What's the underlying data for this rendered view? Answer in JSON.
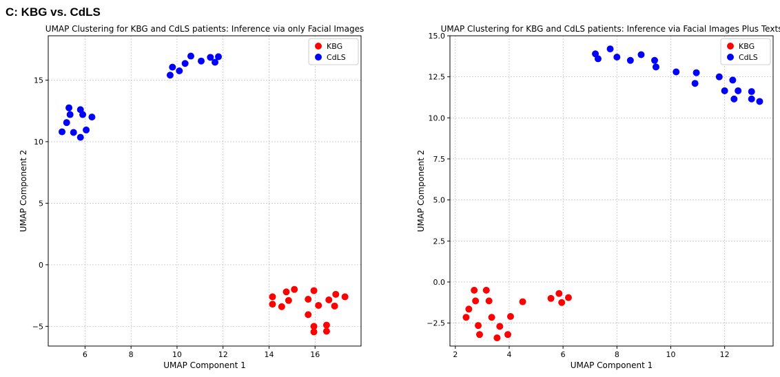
{
  "heading": "C: KBG vs. CdLS",
  "chart_data": [
    {
      "type": "scatter",
      "title": "UMAP Clustering for KBG and CdLS patients: Inference via only Facial Images",
      "xlabel": "UMAP Component 1",
      "ylabel": "UMAP Component 2",
      "xlim": [
        4.4,
        18.0
      ],
      "ylim": [
        -6.6,
        18.6
      ],
      "xticks": [
        6,
        8,
        10,
        12,
        14,
        16
      ],
      "yticks": [
        -5,
        0,
        5,
        10,
        15
      ],
      "tick_labels_x": [
        "6",
        "8",
        "10",
        "12",
        "14",
        "16"
      ],
      "tick_labels_y": [
        "−5",
        "0",
        "5",
        "10",
        "15"
      ],
      "grid": true,
      "legend_position": "top-right",
      "series": [
        {
          "name": "KBG",
          "color": "#ff0000",
          "points": [
            [
              14.15,
              -2.6
            ],
            [
              14.15,
              -3.2
            ],
            [
              14.55,
              -3.4
            ],
            [
              14.75,
              -2.2
            ],
            [
              14.85,
              -2.9
            ],
            [
              15.1,
              -2.0
            ],
            [
              15.7,
              -2.8
            ],
            [
              15.95,
              -2.1
            ],
            [
              16.15,
              -3.3
            ],
            [
              15.7,
              -4.05
            ],
            [
              15.95,
              -5.0
            ],
            [
              15.95,
              -5.45
            ],
            [
              16.5,
              -4.9
            ],
            [
              16.5,
              -5.4
            ],
            [
              16.6,
              -2.85
            ],
            [
              16.85,
              -3.35
            ],
            [
              16.9,
              -2.4
            ],
            [
              17.3,
              -2.6
            ]
          ]
        },
        {
          "name": "CdLS",
          "color": "#0000ff",
          "points": [
            [
              5.0,
              10.8
            ],
            [
              5.2,
              11.55
            ],
            [
              5.3,
              12.75
            ],
            [
              5.35,
              12.2
            ],
            [
              5.5,
              10.75
            ],
            [
              5.8,
              12.6
            ],
            [
              5.8,
              10.35
            ],
            [
              5.9,
              12.2
            ],
            [
              6.05,
              10.95
            ],
            [
              6.3,
              12.0
            ],
            [
              9.7,
              15.4
            ],
            [
              9.8,
              16.05
            ],
            [
              10.1,
              15.75
            ],
            [
              10.35,
              16.35
            ],
            [
              10.6,
              16.95
            ],
            [
              11.05,
              16.55
            ],
            [
              11.45,
              16.85
            ],
            [
              11.65,
              16.45
            ],
            [
              11.8,
              16.9
            ]
          ]
        }
      ]
    },
    {
      "type": "scatter",
      "title": "UMAP Clustering for KBG and CdLS patients: Inference via Facial Images Plus Texts",
      "xlabel": "UMAP Component 1",
      "ylabel": "UMAP Component 2",
      "xlim": [
        1.8,
        13.8
      ],
      "ylim": [
        -3.9,
        15.0
      ],
      "xticks": [
        2,
        4,
        6,
        8,
        10,
        12
      ],
      "yticks": [
        -2.5,
        0.0,
        2.5,
        5.0,
        7.5,
        10.0,
        12.5,
        15.0
      ],
      "tick_labels_x": [
        "2",
        "4",
        "6",
        "8",
        "10",
        "12"
      ],
      "tick_labels_y": [
        "−2.5",
        "0.0",
        "2.5",
        "5.0",
        "7.5",
        "10.0",
        "12.5",
        "15.0"
      ],
      "grid": true,
      "legend_position": "top-right",
      "series": [
        {
          "name": "KBG",
          "color": "#ff0000",
          "points": [
            [
              2.4,
              -2.15
            ],
            [
              2.5,
              -1.65
            ],
            [
              2.7,
              -0.5
            ],
            [
              2.75,
              -1.15
            ],
            [
              2.85,
              -2.65
            ],
            [
              2.9,
              -3.2
            ],
            [
              3.15,
              -0.5
            ],
            [
              3.25,
              -1.15
            ],
            [
              3.35,
              -2.15
            ],
            [
              3.55,
              -3.4
            ],
            [
              3.65,
              -2.7
            ],
            [
              3.95,
              -3.2
            ],
            [
              4.05,
              -2.1
            ],
            [
              4.5,
              -1.2
            ],
            [
              5.55,
              -1.0
            ],
            [
              5.85,
              -0.7
            ],
            [
              5.95,
              -1.25
            ],
            [
              6.2,
              -0.95
            ]
          ]
        },
        {
          "name": "CdLS",
          "color": "#0000ff",
          "points": [
            [
              7.2,
              13.9
            ],
            [
              7.3,
              13.6
            ],
            [
              7.75,
              14.2
            ],
            [
              8.0,
              13.7
            ],
            [
              8.5,
              13.5
            ],
            [
              8.9,
              13.85
            ],
            [
              9.4,
              13.5
            ],
            [
              9.45,
              13.1
            ],
            [
              10.2,
              12.8
            ],
            [
              10.9,
              12.1
            ],
            [
              10.95,
              12.75
            ],
            [
              11.8,
              12.5
            ],
            [
              12.0,
              11.65
            ],
            [
              12.3,
              12.3
            ],
            [
              12.35,
              11.15
            ],
            [
              12.5,
              11.65
            ],
            [
              13.0,
              11.6
            ],
            [
              13.0,
              11.15
            ],
            [
              13.3,
              11.0
            ]
          ]
        }
      ]
    }
  ]
}
